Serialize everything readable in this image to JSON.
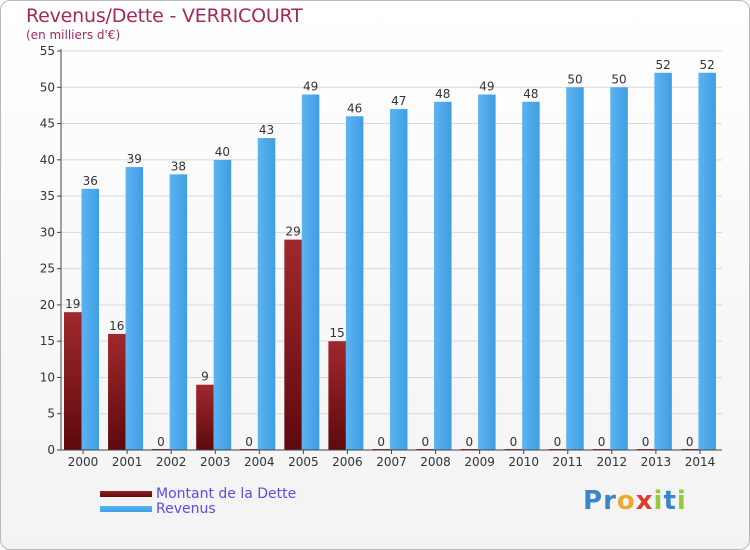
{
  "title": "Revenus/Dette - VERRICOURT",
  "subtitle": "(en milliers d'€)",
  "colors": {
    "debt": "#7a1418",
    "revenue": "#3f9ee3",
    "axis": "#444444",
    "grid": "#d9d9d9",
    "title": "#a3285c"
  },
  "legend": {
    "debt_label": "Montant de la Dette",
    "revenue_label": "Revenus"
  },
  "logo": {
    "letters": [
      "P",
      "r",
      "o",
      "x",
      "i",
      "t",
      "i"
    ],
    "colors": [
      "#3a86c8",
      "#3a86c8",
      "#f0a830",
      "#e03c31",
      "#9bc53d",
      "#3a86c8",
      "#9bc53d"
    ]
  },
  "chart_data": {
    "type": "bar",
    "title": "Revenus/Dette - VERRICOURT",
    "subtitle": "(en milliers d'€)",
    "xlabel": "",
    "ylabel": "",
    "ylim": [
      0,
      55
    ],
    "yticks": [
      0,
      5,
      10,
      15,
      20,
      25,
      30,
      35,
      40,
      45,
      50,
      55
    ],
    "grid": true,
    "legend_position": "bottom-left",
    "categories": [
      "2000",
      "2001",
      "2002",
      "2003",
      "2004",
      "2005",
      "2006",
      "2007",
      "2008",
      "2009",
      "2010",
      "2011",
      "2012",
      "2013",
      "2014"
    ],
    "series": [
      {
        "name": "Montant de la Dette",
        "values": [
          19,
          16,
          0,
          9,
          0,
          29,
          15,
          0,
          0,
          0,
          0,
          0,
          0,
          0,
          0
        ]
      },
      {
        "name": "Revenus",
        "values": [
          36,
          39,
          38,
          40,
          43,
          49,
          46,
          47,
          48,
          49,
          48,
          50,
          50,
          52,
          52
        ]
      }
    ]
  }
}
